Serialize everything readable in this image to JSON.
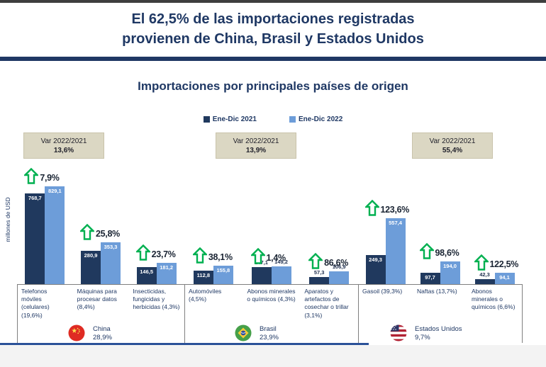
{
  "header": {
    "line1": "El 62,5% de las importaciones registradas",
    "line2": "provienen de China, Brasil y Estados Unidos"
  },
  "chart_data": {
    "type": "bar",
    "title": "Importaciones por principales países de origen",
    "ylabel": "millones de USD",
    "unit": "millones de USD",
    "series": [
      "Ene-Dic 2021",
      "Ene-Dic 2022"
    ],
    "series_colors": [
      "#20395E",
      "#6D9DD9"
    ],
    "axis": {
      "y_ticks_visible": false,
      "ylim": [
        0,
        900
      ],
      "grid": false
    },
    "legend_position": "top-center",
    "groups": [
      {
        "country": "China",
        "country_share": "28,9%",
        "flag": "china",
        "var_title": "Var 2022/2021",
        "var_value": "13,6%",
        "items": [
          {
            "label": "Telefonos móviles (celulares) (19,6%)",
            "values": [
              768.7,
              829.1
            ],
            "value_labels": [
              "768,7",
              "829,1"
            ],
            "delta": "7,9%",
            "value_label_pos": [
              "in",
              "in"
            ]
          },
          {
            "label": "Máquinas para procesar datos (8,4%)",
            "values": [
              280.9,
              353.3
            ],
            "value_labels": [
              "280,9",
              "353,3"
            ],
            "delta": "25,8%",
            "value_label_pos": [
              "in",
              "in"
            ]
          },
          {
            "label": "Insecticidas, fungicidas y herbicidas (4,3%)",
            "values": [
              146.5,
              181.2
            ],
            "value_labels": [
              "146,5",
              "181,2"
            ],
            "delta": "23,7%",
            "value_label_pos": [
              "in",
              "in"
            ]
          }
        ]
      },
      {
        "country": "Brasil",
        "country_share": "23,9%",
        "flag": "brasil",
        "var_title": "Var 2022/2021",
        "var_value": "13,9%",
        "items": [
          {
            "label": "Automóviles (4,5%)",
            "values": [
              112.8,
              155.8
            ],
            "value_labels": [
              "112,8",
              "155,8"
            ],
            "delta": "38,1%",
            "value_label_pos": [
              "in",
              "in"
            ]
          },
          {
            "label": "Abonos minerales o químicos (4,3%)",
            "values": [
              147.1,
              149.2
            ],
            "value_labels": [
              "147,1",
              "149,2"
            ],
            "delta": "1,4%",
            "value_label_pos": [
              "out",
              "out"
            ],
            "label_align": "center"
          },
          {
            "label": "Aparatos y artefactos de cosechar o trillar (3,1%)",
            "values": [
              57.3,
              106.9
            ],
            "value_labels": [
              "57,3",
              "106,9"
            ],
            "delta": "86,6%",
            "value_label_pos": [
              "out",
              "out"
            ]
          }
        ]
      },
      {
        "country": "Estados Unidos",
        "country_share": "9,7%",
        "flag": "usa",
        "var_title": "Var 2022/2021",
        "var_value": "55,4%",
        "items": [
          {
            "label": "Gasoil (39,3%)",
            "values": [
              249.3,
              557.4
            ],
            "value_labels": [
              "249,3",
              "557,4"
            ],
            "delta": "123,6%",
            "value_label_pos": [
              "in",
              "in"
            ]
          },
          {
            "label": "Naftas (13,7%)",
            "values": [
              97.7,
              194.0
            ],
            "value_labels": [
              "97,7",
              "194,0"
            ],
            "delta": "98,6%",
            "value_label_pos": [
              "in",
              "in"
            ]
          },
          {
            "label": "Abonos minerales o químicos (6,6%)",
            "values": [
              42.3,
              94.1
            ],
            "value_labels": [
              "42,3",
              "94,1"
            ],
            "delta": "122,5%",
            "value_label_pos": [
              "out",
              "in"
            ]
          }
        ]
      }
    ]
  },
  "colors": {
    "navy": "#1F3864",
    "light_blue": "#6D9DD9",
    "green_arrow": "#00B050",
    "var_box_bg": "#DBD7C3",
    "bottom_line": "#2A5198"
  }
}
